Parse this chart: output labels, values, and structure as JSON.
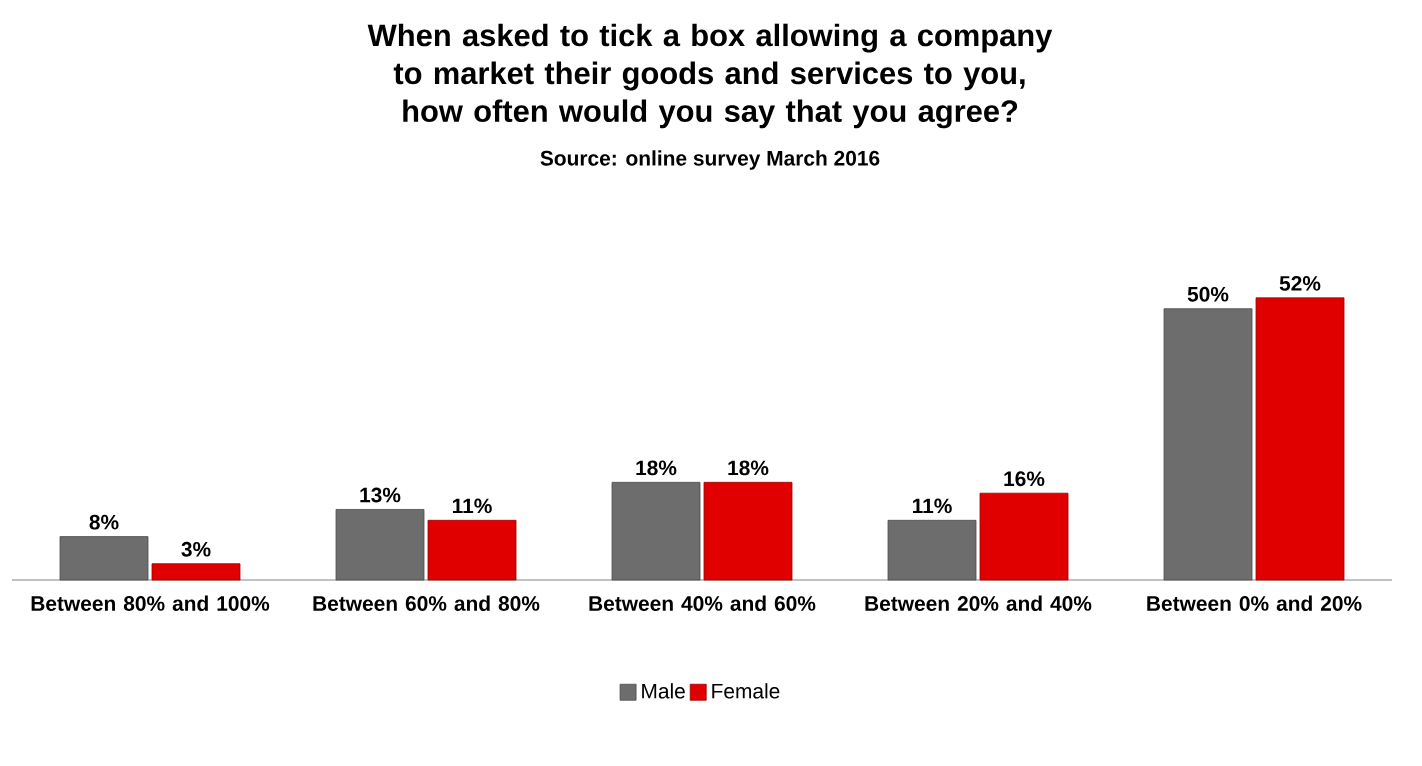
{
  "chart_data": {
    "type": "bar",
    "title": "When asked to tick a box allowing a company to market their goods and services to you, how often would you say that you agree?",
    "subtitle": "Source: online survey March 2016",
    "categories": [
      "Between 80% and 100%",
      "Between 60% and 80%",
      "Between 40% and 60%",
      "Between 20% and 40%",
      "Between 0% and 20%"
    ],
    "series": [
      {
        "name": "Male",
        "color": "#6d6d6d",
        "values": [
          8,
          13,
          18,
          11,
          50
        ],
        "value_labels": [
          "8%",
          "13%",
          "18%",
          "11%",
          "50%"
        ]
      },
      {
        "name": "Female",
        "color": "#e00000",
        "values": [
          3,
          11,
          18,
          16,
          52
        ],
        "value_labels": [
          "3%",
          "11%",
          "18%",
          "16%",
          "52%"
        ]
      }
    ],
    "legend": "bottom"
  }
}
